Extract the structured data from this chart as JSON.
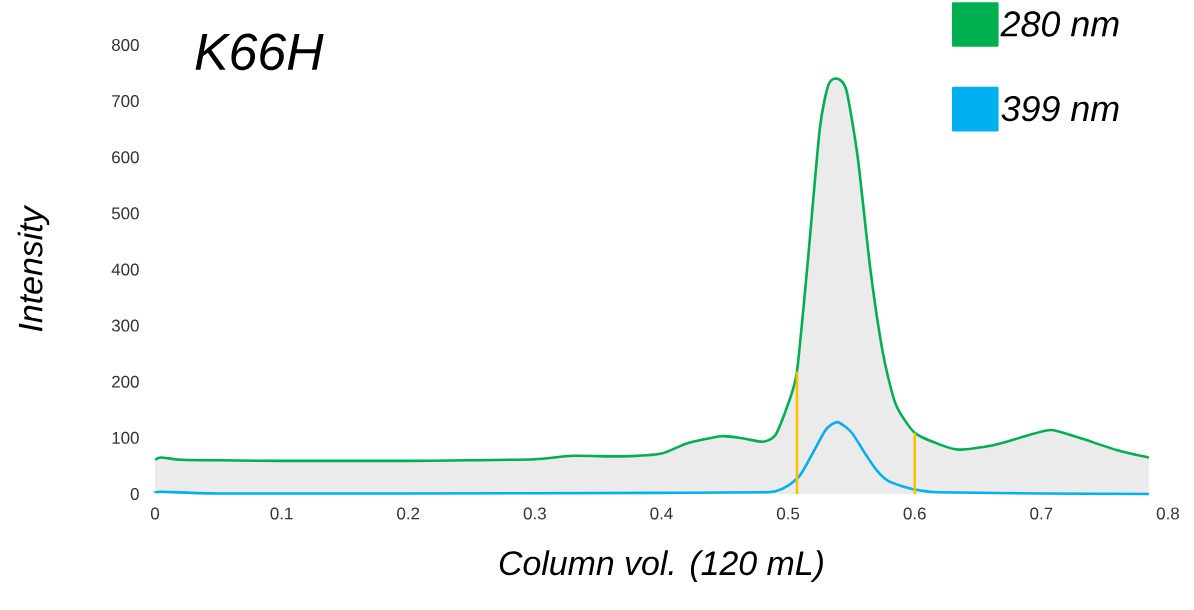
{
  "chart_data": {
    "type": "line",
    "title": "K66H",
    "xlabel": "Column vol. (120 mL)",
    "ylabel": "Intensity",
    "xlim": [
      0,
      0.8
    ],
    "ylim": [
      0,
      800
    ],
    "xticks": [
      0,
      0.1,
      0.2,
      0.3,
      0.4,
      0.5,
      0.6,
      0.7,
      0.8
    ],
    "yticks": [
      0,
      100,
      200,
      300,
      400,
      500,
      600,
      700,
      800
    ],
    "grid": false,
    "legend": "top right",
    "marker": "none",
    "series": [
      {
        "name": "280 nm",
        "type": "area",
        "color": "#00b050",
        "x": [
          0,
          0.005,
          0.02,
          0.05,
          0.1,
          0.2,
          0.25,
          0.3,
          0.33,
          0.37,
          0.4,
          0.42,
          0.447,
          0.465,
          0.48,
          0.49,
          0.5,
          0.507,
          0.515,
          0.525,
          0.532,
          0.539,
          0.546,
          0.555,
          0.565,
          0.575,
          0.585,
          0.6,
          0.62,
          0.635,
          0.66,
          0.68,
          0.707,
          0.73,
          0.76,
          0.785
        ],
        "values": [
          61,
          65,
          61,
          60,
          59,
          59,
          60,
          62,
          68,
          67,
          72,
          90,
          103,
          99,
          93,
          105,
          160,
          218,
          400,
          650,
          730,
          740,
          720,
          600,
          400,
          250,
          160,
          109,
          88,
          79,
          86,
          98,
          114,
          100,
          78,
          65
        ]
      },
      {
        "name": "399 nm",
        "color": "#00b0f0",
        "x": [
          0,
          0.005,
          0.05,
          0.2,
          0.4,
          0.48,
          0.49,
          0.5,
          0.51,
          0.52,
          0.53,
          0.539,
          0.55,
          0.56,
          0.57,
          0.58,
          0.6,
          0.62,
          0.7,
          0.785
        ],
        "values": [
          2,
          4,
          1,
          1,
          2,
          3,
          5,
          15,
          35,
          75,
          115,
          128,
          110,
          75,
          42,
          22,
          8,
          3,
          1,
          0
        ]
      },
      {
        "color": "#ffc000",
        "x": [
          0.507,
          0.507
        ],
        "values": [
          0,
          218
        ]
      },
      {
        "color": "#ffc000",
        "x": [
          0.6,
          0.6
        ],
        "values": [
          0,
          109
        ]
      }
    ]
  }
}
